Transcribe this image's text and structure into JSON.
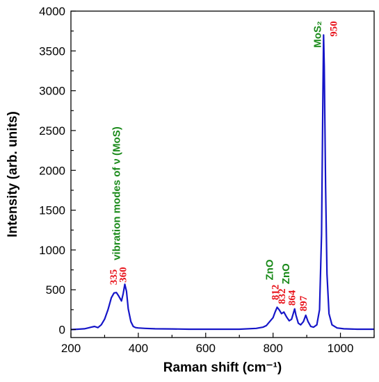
{
  "chart_data": {
    "type": "line",
    "title": "",
    "xlabel": "Raman shift (cm⁻¹)",
    "ylabel": "Intensity (arb. units)",
    "xlim": [
      200,
      1100
    ],
    "ylim": [
      -100,
      4000
    ],
    "xticks": [
      200,
      400,
      600,
      800,
      1000
    ],
    "yticks": [
      0,
      500,
      1000,
      1500,
      2000,
      2500,
      3000,
      3500,
      4000
    ],
    "grid": false,
    "legend": "none",
    "series": [
      {
        "color": "#1515c8",
        "x": [
          200,
          220,
          240,
          260,
          270,
          280,
          290,
          300,
          310,
          320,
          328,
          335,
          342,
          350,
          355,
          360,
          365,
          370,
          378,
          385,
          392,
          400,
          420,
          450,
          500,
          550,
          600,
          650,
          700,
          750,
          770,
          780,
          790,
          800,
          806,
          812,
          818,
          825,
          832,
          840,
          848,
          855,
          860,
          864,
          868,
          875,
          882,
          890,
          897,
          904,
          912,
          920,
          930,
          938,
          944,
          948,
          950,
          952,
          956,
          960,
          966,
          975,
          990,
          1010,
          1050,
          1100
        ],
        "y": [
          0,
          5,
          10,
          30,
          40,
          25,
          60,
          130,
          250,
          400,
          460,
          465,
          420,
          360,
          450,
          570,
          480,
          260,
          100,
          40,
          25,
          20,
          15,
          10,
          8,
          5,
          5,
          5,
          5,
          15,
          30,
          50,
          100,
          150,
          220,
          280,
          250,
          200,
          220,
          160,
          110,
          130,
          200,
          260,
          180,
          80,
          60,
          100,
          180,
          100,
          40,
          30,
          60,
          250,
          1200,
          3000,
          3700,
          3300,
          1800,
          700,
          200,
          60,
          20,
          10,
          5,
          5
        ]
      }
    ],
    "annotations": [
      {
        "text": "335",
        "color": "red",
        "x": 336,
        "y": 560,
        "rotate": -90
      },
      {
        "text": "360",
        "color": "red",
        "x": 364,
        "y": 590,
        "rotate": -90
      },
      {
        "text": "vibration modes of ν (MoS)",
        "color": "green",
        "x": 346,
        "y": 870,
        "rotate": -90
      },
      {
        "text": "812",
        "color": "red",
        "x": 816,
        "y": 370,
        "rotate": -90
      },
      {
        "text": "832",
        "color": "red",
        "x": 836,
        "y": 320,
        "rotate": -90
      },
      {
        "text": "864",
        "color": "red",
        "x": 866,
        "y": 300,
        "rotate": -90
      },
      {
        "text": "897",
        "color": "red",
        "x": 900,
        "y": 230,
        "rotate": -90
      },
      {
        "text": "ZnO",
        "color": "green",
        "x": 800,
        "y": 620,
        "rotate": -90
      },
      {
        "text": "ZnO",
        "color": "green",
        "x": 848,
        "y": 570,
        "rotate": -90
      },
      {
        "text": "MoS₂",
        "color": "green",
        "x": 942,
        "y": 3540,
        "rotate": -90
      },
      {
        "text": "950",
        "color": "red",
        "x": 990,
        "y": 3680,
        "rotate": -90
      }
    ]
  }
}
